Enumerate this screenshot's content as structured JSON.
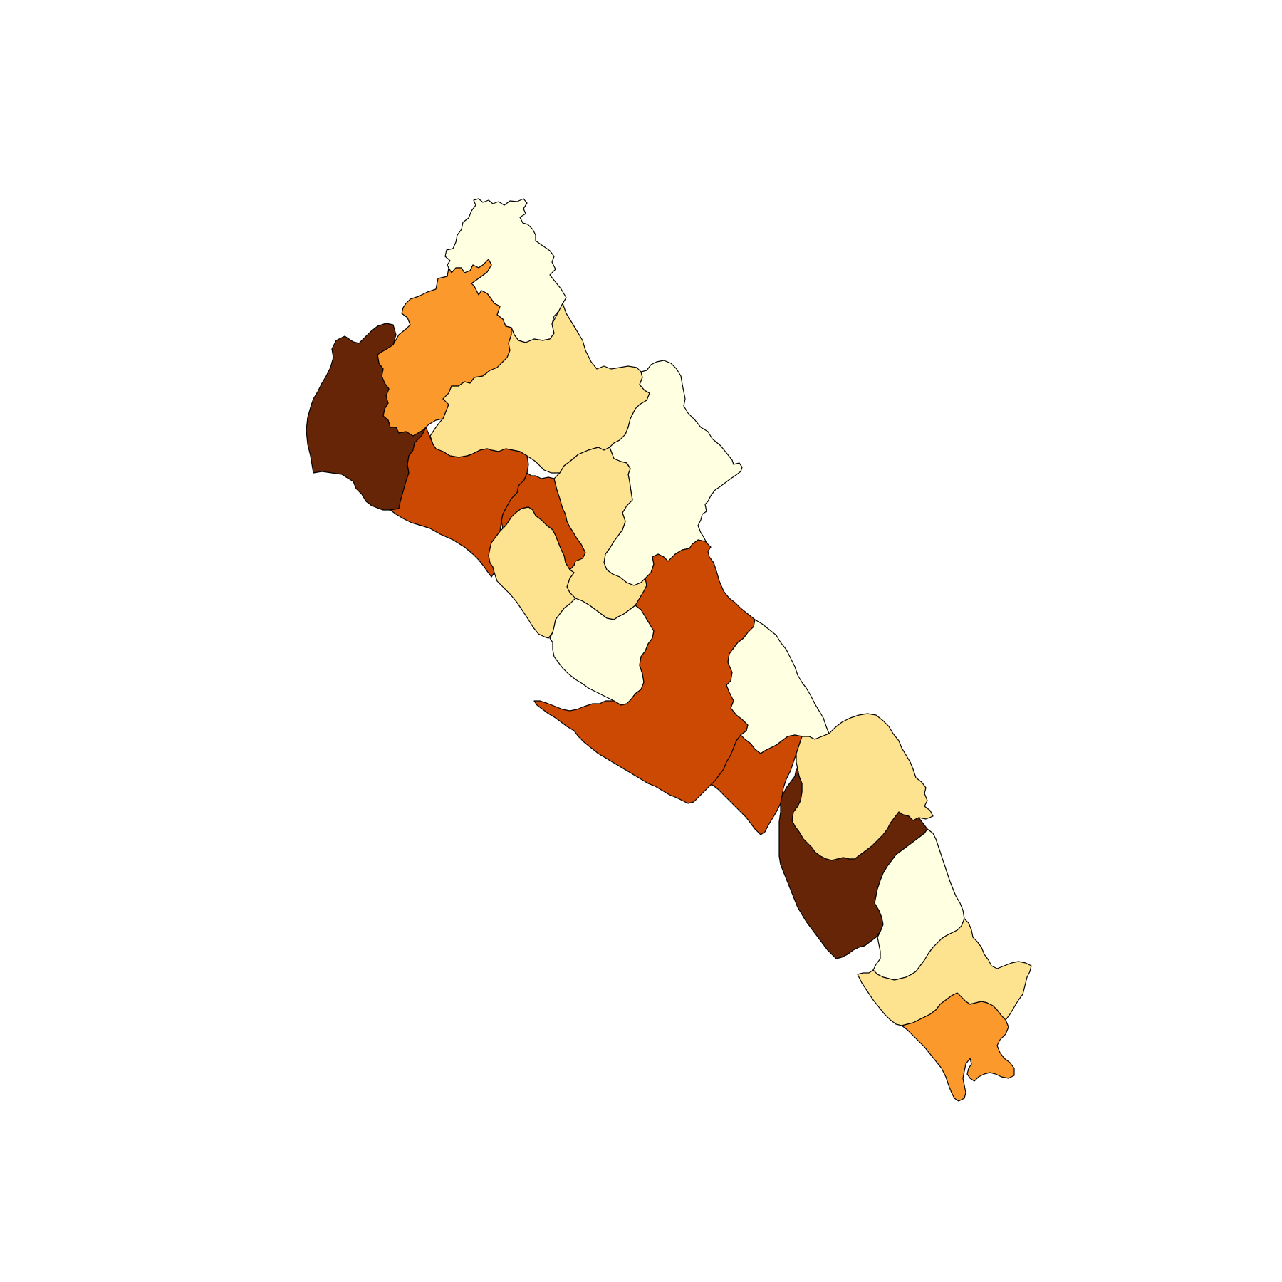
{
  "map": {
    "type": "choropleth",
    "background": "#ffffff",
    "palette": {
      "class_1": "#ffffe2",
      "class_2": "#fde390",
      "class_3": "#fb992c",
      "class_4": "#cb4902",
      "class_5": "#662506"
    },
    "regions": [
      {
        "id": "north-tip",
        "class": "class_1"
      },
      {
        "id": "northwest-orange",
        "class": "class_3"
      },
      {
        "id": "west-coast-dark",
        "class": "class_5"
      },
      {
        "id": "north-central-light",
        "class": "class_2"
      },
      {
        "id": "northeast-white",
        "class": "class_1"
      },
      {
        "id": "coast-rust",
        "class": "class_4"
      },
      {
        "id": "central-strip-rust",
        "class": "class_4"
      },
      {
        "id": "central-light-east",
        "class": "class_2"
      },
      {
        "id": "coast-light-west",
        "class": "class_2"
      },
      {
        "id": "central-white",
        "class": "class_1"
      },
      {
        "id": "central-big-rust",
        "class": "class_4"
      },
      {
        "id": "east-white",
        "class": "class_1"
      },
      {
        "id": "south-rust",
        "class": "class_4"
      },
      {
        "id": "southeast-light",
        "class": "class_2"
      },
      {
        "id": "south-coast-dark",
        "class": "class_5"
      },
      {
        "id": "south-white",
        "class": "class_1"
      },
      {
        "id": "south-light",
        "class": "class_2"
      },
      {
        "id": "south-tip-orange",
        "class": "class_3"
      }
    ]
  }
}
